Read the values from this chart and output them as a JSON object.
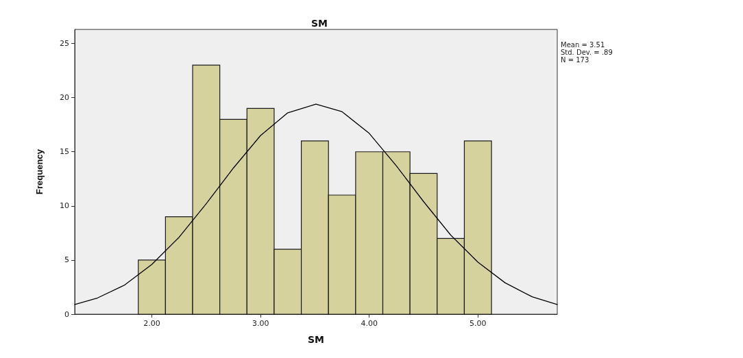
{
  "chart_data": {
    "type": "histogram",
    "title": "SM",
    "xlabel": "SM",
    "ylabel": "Frequency",
    "annotations": [
      "Mean = 3.51",
      "Std. Dev. = .89",
      "N = 173"
    ],
    "xlim": [
      1.29,
      5.73
    ],
    "xticks": [
      {
        "value": 2,
        "label": "2.00"
      },
      {
        "value": 3,
        "label": "3.00"
      },
      {
        "value": 4,
        "label": "4.00"
      },
      {
        "value": 5,
        "label": "5.00"
      }
    ],
    "ylim": [
      0,
      26.3
    ],
    "yticks": [
      0,
      5,
      10,
      15,
      20,
      25
    ],
    "grid": false,
    "series": [
      {
        "color": "#d6d29e",
        "bins": [
          1.875,
          2.125,
          2.375,
          2.625,
          2.875,
          3.125,
          3.375,
          3.625,
          3.875,
          4.125,
          4.375,
          4.625,
          4.875,
          5.125
        ],
        "values": [
          5,
          9,
          23,
          18,
          19,
          6,
          16,
          11,
          15,
          15,
          13,
          7,
          16
        ]
      },
      {
        "type": "line",
        "color": "#000000",
        "x": [
          1.29,
          1.5,
          1.75,
          2.0,
          2.25,
          2.5,
          2.75,
          3.0,
          3.25,
          3.51,
          3.75,
          4.0,
          4.25,
          4.5,
          4.75,
          5.0,
          5.25,
          5.5,
          5.73
        ],
        "values": [
          0.9,
          1.5,
          2.7,
          4.6,
          7.1,
          10.2,
          13.5,
          16.5,
          18.6,
          19.4,
          18.7,
          16.7,
          13.7,
          10.4,
          7.3,
          4.8,
          2.9,
          1.6,
          0.9
        ]
      }
    ]
  }
}
